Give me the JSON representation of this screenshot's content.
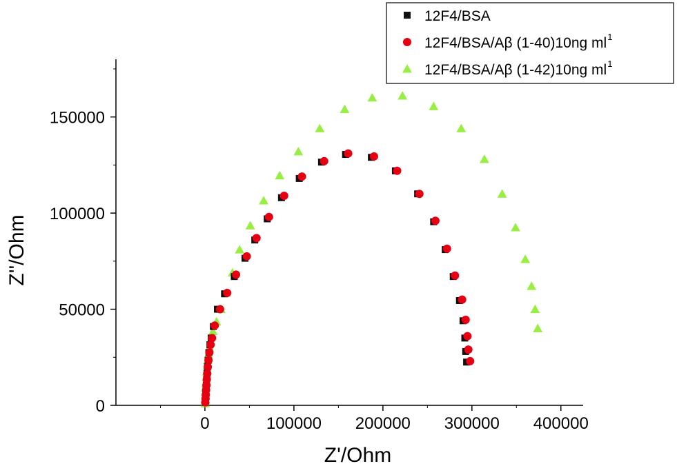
{
  "chart_data": {
    "type": "scatter",
    "xlabel": "Z'/Ohm",
    "ylabel": "Z''/Ohm",
    "xlim": [
      -100000,
      425000
    ],
    "ylim": [
      0,
      180000
    ],
    "xticks": [
      0,
      100000,
      200000,
      300000,
      400000
    ],
    "yticks": [
      0,
      50000,
      100000,
      150000
    ],
    "xtick_labels": [
      "0",
      "100000",
      "200000",
      "300000",
      "400000"
    ],
    "ytick_labels": [
      "0",
      "50000",
      "100000",
      "150000"
    ],
    "grid": false,
    "legend_position": "top-right",
    "series": [
      {
        "name": "12F4/BSA",
        "legend_sup": "",
        "marker": "square",
        "color": "#111111",
        "points": [
          [
            300,
            1500
          ],
          [
            600,
            3500
          ],
          [
            900,
            5500
          ],
          [
            1200,
            8000
          ],
          [
            1500,
            10500
          ],
          [
            1900,
            13500
          ],
          [
            2300,
            16500
          ],
          [
            2900,
            20000
          ],
          [
            3600,
            23500
          ],
          [
            4500,
            27500
          ],
          [
            5600,
            31500
          ],
          [
            7000,
            35000
          ],
          [
            9500,
            41000
          ],
          [
            14000,
            50000
          ],
          [
            22000,
            58000
          ],
          [
            33000,
            67000
          ],
          [
            45000,
            76500
          ],
          [
            56000,
            86000
          ],
          [
            70000,
            97000
          ],
          [
            86000,
            108000
          ],
          [
            106000,
            118000
          ],
          [
            131000,
            126500
          ],
          [
            158000,
            130500
          ],
          [
            187000,
            129000
          ],
          [
            214000,
            122000
          ],
          [
            239000,
            110000
          ],
          [
            257000,
            95500
          ],
          [
            270000,
            81000
          ],
          [
            279000,
            67000
          ],
          [
            286000,
            54500
          ],
          [
            290000,
            44000
          ],
          [
            292000,
            35000
          ],
          [
            293000,
            28000
          ],
          [
            294000,
            22500
          ]
        ]
      },
      {
        "name": "12F4/BSA/Aβ (1-40)10ng ml",
        "legend_sup": "1",
        "marker": "circle",
        "color": "#e60012",
        "points": [
          [
            400,
            1500
          ],
          [
            700,
            3500
          ],
          [
            1000,
            5500
          ],
          [
            1300,
            8000
          ],
          [
            1700,
            10500
          ],
          [
            2100,
            13500
          ],
          [
            2600,
            16500
          ],
          [
            3200,
            20000
          ],
          [
            4000,
            23500
          ],
          [
            5000,
            27500
          ],
          [
            6300,
            31500
          ],
          [
            8000,
            35000
          ],
          [
            11000,
            41500
          ],
          [
            17000,
            50000
          ],
          [
            25000,
            58500
          ],
          [
            35000,
            68000
          ],
          [
            47000,
            77500
          ],
          [
            58000,
            87000
          ],
          [
            72000,
            98000
          ],
          [
            89000,
            109000
          ],
          [
            109000,
            119000
          ],
          [
            134000,
            127000
          ],
          [
            161000,
            131000
          ],
          [
            190000,
            129500
          ],
          [
            216000,
            122000
          ],
          [
            241000,
            110000
          ],
          [
            259000,
            96000
          ],
          [
            272000,
            81500
          ],
          [
            281000,
            67500
          ],
          [
            289000,
            55000
          ],
          [
            293000,
            44500
          ],
          [
            295000,
            36000
          ],
          [
            296000,
            29000
          ],
          [
            298000,
            23000
          ]
        ]
      },
      {
        "name": "12F4/BSA/Aβ (1-42)10ng ml",
        "legend_sup": "1",
        "marker": "triangle",
        "color": "#99ee44",
        "points": [
          [
            200,
            1000
          ],
          [
            400,
            3000
          ],
          [
            600,
            5000
          ],
          [
            800,
            7000
          ],
          [
            1000,
            9000
          ],
          [
            1300,
            11500
          ],
          [
            1600,
            14500
          ],
          [
            2000,
            17500
          ],
          [
            2500,
            20500
          ],
          [
            3200,
            23500
          ],
          [
            4000,
            26500
          ],
          [
            5000,
            30000
          ],
          [
            6500,
            33500
          ],
          [
            9000,
            38500
          ],
          [
            13000,
            43500
          ],
          [
            18000,
            50000
          ],
          [
            24000,
            58500
          ],
          [
            31000,
            69000
          ],
          [
            39000,
            81000
          ],
          [
            51000,
            93500
          ],
          [
            66000,
            106500
          ],
          [
            84000,
            119500
          ],
          [
            105000,
            132000
          ],
          [
            129000,
            144000
          ],
          [
            157000,
            154000
          ],
          [
            188000,
            160000
          ],
          [
            222000,
            161000
          ],
          [
            257000,
            155500
          ],
          [
            288000,
            144000
          ],
          [
            314000,
            128000
          ],
          [
            334000,
            110000
          ],
          [
            349000,
            92500
          ],
          [
            360000,
            76000
          ],
          [
            367000,
            62000
          ],
          [
            371000,
            50000
          ],
          [
            374000,
            40000
          ]
        ]
      }
    ]
  }
}
